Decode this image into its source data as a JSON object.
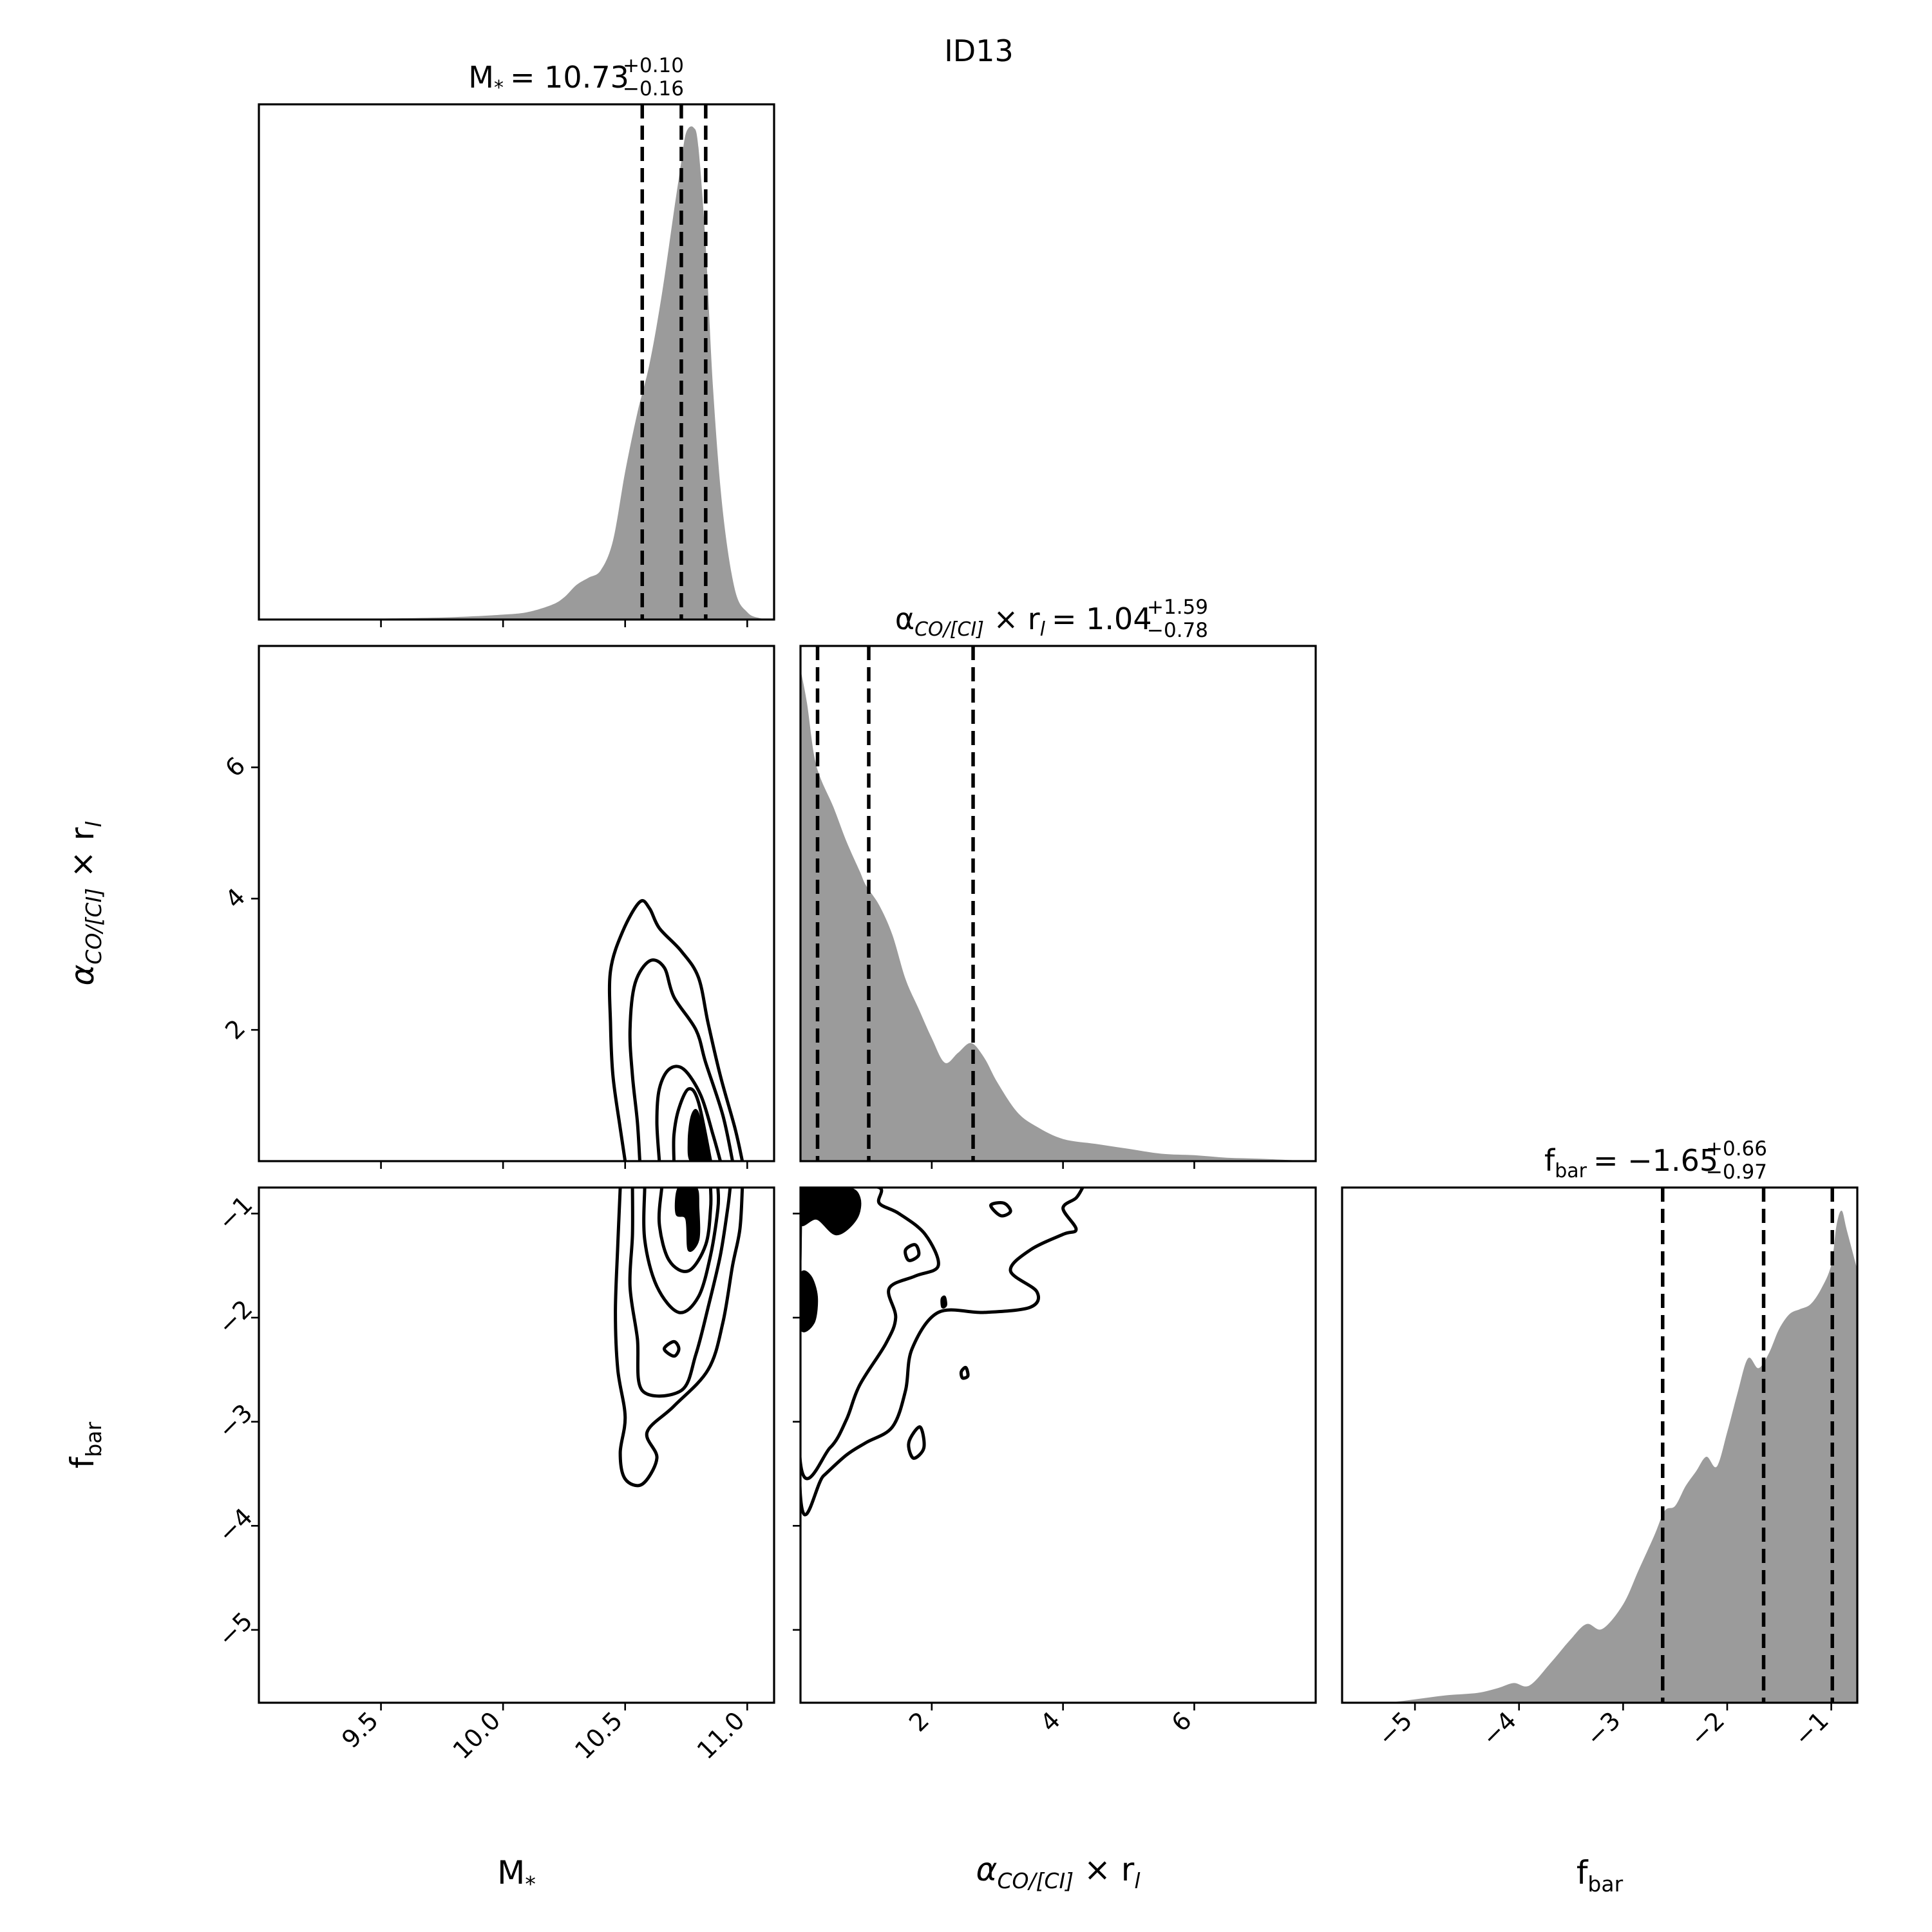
{
  "figure_title": "ID13",
  "chart_data": {
    "type": "corner",
    "parameters": [
      {
        "key": "mstar",
        "label_main": "M",
        "label_sub": "*",
        "range": [
          9.0,
          11.11
        ],
        "ticks": [
          9.5,
          10.0,
          10.5,
          11.0
        ],
        "tick_labels": [
          "9.5",
          "10.0",
          "10.5",
          "11.0"
        ],
        "median": 10.73,
        "plus": "+0.10",
        "minus": "−0.16",
        "median_text": "10.73",
        "quantiles": [
          10.57,
          10.73,
          10.83
        ]
      },
      {
        "key": "alpha",
        "label_main": "α",
        "label_sub": "CO/[CI]",
        "label_tail": " × r",
        "label_tail_sub": "l",
        "range": [
          0.0,
          7.85
        ],
        "ticks": [
          2,
          4,
          6
        ],
        "tick_labels": [
          "2",
          "4",
          "6"
        ],
        "median": 1.04,
        "plus": "+1.59",
        "minus": "−0.78",
        "median_text": "1.04",
        "quantiles": [
          0.26,
          1.04,
          2.63
        ]
      },
      {
        "key": "fbar",
        "label_main": "f",
        "label_sub": "bar",
        "range": [
          -5.7,
          -0.75
        ],
        "ticks": [
          -5,
          -4,
          -3,
          -2,
          -1
        ],
        "tick_labels": [
          "−5",
          "−4",
          "−3",
          "−2",
          "−1"
        ],
        "median": -1.65,
        "plus": "+0.66",
        "minus": "−0.97",
        "median_text": "−1.65",
        "quantiles": [
          -2.62,
          -1.65,
          -0.99
        ]
      }
    ],
    "marginal_mstar": {
      "x": [
        9.0,
        9.5,
        9.8,
        10.0,
        10.1,
        10.2,
        10.25,
        10.3,
        10.35,
        10.4,
        10.45,
        10.5,
        10.55,
        10.6,
        10.65,
        10.7,
        10.73,
        10.75,
        10.78,
        10.8,
        10.83,
        10.86,
        10.9,
        10.95,
        11.0,
        11.05,
        11.11
      ],
      "y": [
        0.0,
        0.002,
        0.005,
        0.01,
        0.015,
        0.03,
        0.045,
        0.07,
        0.085,
        0.1,
        0.16,
        0.3,
        0.42,
        0.52,
        0.66,
        0.83,
        0.93,
        0.99,
        1.0,
        0.96,
        0.76,
        0.47,
        0.22,
        0.06,
        0.015,
        0.003,
        0.0
      ]
    },
    "marginal_alpha": {
      "x": [
        0.0,
        0.1,
        0.2,
        0.3,
        0.5,
        0.7,
        0.9,
        1.0,
        1.2,
        1.4,
        1.6,
        1.8,
        2.0,
        2.2,
        2.4,
        2.6,
        2.8,
        3.0,
        3.3,
        3.6,
        4.0,
        4.5,
        5.0,
        5.5,
        6.0,
        6.5,
        7.0,
        7.5,
        7.85
      ],
      "y": [
        1.0,
        0.93,
        0.83,
        0.78,
        0.72,
        0.65,
        0.59,
        0.56,
        0.52,
        0.46,
        0.37,
        0.31,
        0.25,
        0.2,
        0.22,
        0.24,
        0.21,
        0.16,
        0.1,
        0.07,
        0.045,
        0.035,
        0.025,
        0.015,
        0.012,
        0.007,
        0.005,
        0.002,
        0.0
      ]
    },
    "marginal_fbar": {
      "x": [
        -5.7,
        -5.3,
        -5.0,
        -4.7,
        -4.4,
        -4.2,
        -4.05,
        -3.9,
        -3.7,
        -3.5,
        -3.35,
        -3.2,
        -3.0,
        -2.85,
        -2.7,
        -2.6,
        -2.5,
        -2.4,
        -2.3,
        -2.2,
        -2.1,
        -2.0,
        -1.9,
        -1.8,
        -1.7,
        -1.6,
        -1.5,
        -1.4,
        -1.3,
        -1.2,
        -1.1,
        -1.0,
        -0.95,
        -0.9,
        -0.85,
        -0.75
      ],
      "y": [
        0.0,
        0.0,
        0.007,
        0.015,
        0.02,
        0.03,
        0.04,
        0.035,
        0.08,
        0.13,
        0.16,
        0.15,
        0.2,
        0.27,
        0.34,
        0.39,
        0.4,
        0.44,
        0.47,
        0.5,
        0.48,
        0.55,
        0.63,
        0.7,
        0.68,
        0.71,
        0.76,
        0.79,
        0.8,
        0.81,
        0.84,
        0.89,
        0.97,
        1.0,
        0.96,
        0.88
      ]
    },
    "contours_mstar_alpha": [
      [
        [
          10.5,
          0.0
        ],
        [
          10.48,
          0.5
        ],
        [
          10.45,
          1.3
        ],
        [
          10.44,
          2.1
        ],
        [
          10.44,
          2.9
        ],
        [
          10.49,
          3.5
        ],
        [
          10.56,
          3.95
        ],
        [
          10.6,
          3.85
        ],
        [
          10.64,
          3.55
        ],
        [
          10.73,
          3.2
        ],
        [
          10.8,
          2.8
        ],
        [
          10.84,
          2.1
        ],
        [
          10.89,
          1.3
        ],
        [
          10.95,
          0.5
        ],
        [
          10.98,
          0.0
        ]
      ],
      [
        [
          10.56,
          0.0
        ],
        [
          10.55,
          0.6
        ],
        [
          10.53,
          1.3
        ],
        [
          10.52,
          2.0
        ],
        [
          10.54,
          2.7
        ],
        [
          10.6,
          3.05
        ],
        [
          10.66,
          2.95
        ],
        [
          10.7,
          2.5
        ],
        [
          10.79,
          2.0
        ],
        [
          10.83,
          1.5
        ],
        [
          10.9,
          0.7
        ],
        [
          10.94,
          0.0
        ]
      ],
      [
        [
          10.64,
          0.0
        ],
        [
          10.63,
          0.6
        ],
        [
          10.64,
          1.1
        ],
        [
          10.68,
          1.4
        ],
        [
          10.74,
          1.4
        ],
        [
          10.81,
          1.0
        ],
        [
          10.86,
          0.4
        ],
        [
          10.89,
          0.0
        ]
      ],
      [
        [
          10.7,
          0.0
        ],
        [
          10.7,
          0.4
        ],
        [
          10.72,
          0.8
        ],
        [
          10.76,
          1.1
        ],
        [
          10.8,
          0.9
        ],
        [
          10.85,
          0.0
        ]
      ]
    ],
    "blobs_mstar_alpha": [
      [
        [
          10.77,
          0.0
        ],
        [
          10.76,
          0.3
        ],
        [
          10.77,
          0.65
        ],
        [
          10.79,
          0.78
        ],
        [
          10.81,
          0.6
        ],
        [
          10.83,
          0.25
        ],
        [
          10.84,
          0.0
        ]
      ]
    ],
    "contours_mstar_fbar": [
      [
        [
          10.48,
          -0.75
        ],
        [
          10.47,
          -1.3
        ],
        [
          10.46,
          -1.95
        ],
        [
          10.47,
          -2.5
        ],
        [
          10.5,
          -2.95
        ],
        [
          10.48,
          -3.3
        ],
        [
          10.5,
          -3.55
        ],
        [
          10.57,
          -3.6
        ],
        [
          10.63,
          -3.35
        ],
        [
          10.59,
          -3.1
        ],
        [
          10.7,
          -2.85
        ],
        [
          10.84,
          -2.5
        ],
        [
          10.9,
          -2.05
        ],
        [
          10.94,
          -1.5
        ],
        [
          10.97,
          -1.15
        ],
        [
          10.98,
          -0.75
        ]
      ],
      [
        [
          10.53,
          -0.75
        ],
        [
          10.53,
          -1.2
        ],
        [
          10.52,
          -1.7
        ],
        [
          10.55,
          -2.2
        ],
        [
          10.57,
          -2.7
        ],
        [
          10.73,
          -2.7
        ],
        [
          10.79,
          -2.35
        ],
        [
          10.84,
          -1.9
        ],
        [
          10.89,
          -1.4
        ],
        [
          10.92,
          -0.95
        ],
        [
          10.93,
          -0.75
        ]
      ],
      [
        [
          10.58,
          -0.75
        ],
        [
          10.58,
          -1.25
        ],
        [
          10.63,
          -1.7
        ],
        [
          10.72,
          -1.95
        ],
        [
          10.8,
          -1.8
        ],
        [
          10.85,
          -1.4
        ],
        [
          10.88,
          -0.95
        ],
        [
          10.88,
          -0.75
        ]
      ],
      [
        [
          10.65,
          -0.75
        ],
        [
          10.64,
          -1.1
        ],
        [
          10.68,
          -1.45
        ],
        [
          10.76,
          -1.55
        ],
        [
          10.83,
          -1.3
        ],
        [
          10.85,
          -0.95
        ],
        [
          10.85,
          -0.75
        ]
      ]
    ],
    "smallrings_mstar_fbar": [
      [
        [
          10.66,
          -2.3
        ],
        [
          10.7,
          -2.23
        ],
        [
          10.72,
          -2.3
        ],
        [
          10.7,
          -2.37
        ]
      ]
    ],
    "blobs_mstar_fbar": [
      [
        [
          10.72,
          -0.75
        ],
        [
          10.71,
          -1.0
        ],
        [
          10.75,
          -1.05
        ],
        [
          10.76,
          -1.35
        ],
        [
          10.8,
          -1.25
        ],
        [
          10.8,
          -0.95
        ],
        [
          10.79,
          -0.75
        ]
      ]
    ],
    "contours_alpha_fbar": [
      [
        [
          0.0,
          -0.75
        ],
        [
          0.0,
          -3.72
        ],
        [
          0.35,
          -3.52
        ],
        [
          0.7,
          -3.32
        ],
        [
          1.0,
          -3.2
        ],
        [
          1.4,
          -3.05
        ],
        [
          1.6,
          -2.7
        ],
        [
          1.7,
          -2.3
        ],
        [
          2.1,
          -1.95
        ],
        [
          2.8,
          -1.95
        ],
        [
          3.5,
          -1.9
        ],
        [
          3.6,
          -1.75
        ],
        [
          3.2,
          -1.55
        ],
        [
          3.5,
          -1.35
        ],
        [
          4.0,
          -1.2
        ],
        [
          4.2,
          -1.15
        ],
        [
          4.0,
          -0.95
        ],
        [
          4.2,
          -0.85
        ],
        [
          4.3,
          -0.75
        ]
      ],
      [
        [
          0.0,
          -1.0
        ],
        [
          0.0,
          -3.4
        ],
        [
          0.45,
          -3.25
        ],
        [
          0.7,
          -2.98
        ],
        [
          0.9,
          -2.65
        ],
        [
          1.3,
          -2.25
        ],
        [
          1.45,
          -2.0
        ],
        [
          1.35,
          -1.72
        ],
        [
          1.75,
          -1.6
        ],
        [
          2.1,
          -1.5
        ],
        [
          1.9,
          -1.2
        ],
        [
          1.5,
          -1.0
        ],
        [
          1.2,
          -0.9
        ],
        [
          1.2,
          -0.75
        ],
        [
          0.6,
          -0.75
        ],
        [
          0.4,
          -0.9
        ],
        [
          0.2,
          -0.95
        ]
      ],
      [
        [
          2.9,
          -0.92
        ],
        [
          3.1,
          -0.9
        ],
        [
          3.2,
          -0.98
        ],
        [
          3.05,
          -1.02
        ]
      ],
      [
        [
          1.6,
          -1.35
        ],
        [
          1.75,
          -1.3
        ],
        [
          1.8,
          -1.4
        ],
        [
          1.65,
          -1.45
        ]
      ],
      [
        [
          1.65,
          -3.2
        ],
        [
          1.82,
          -3.05
        ],
        [
          1.88,
          -3.25
        ],
        [
          1.72,
          -3.35
        ]
      ],
      [
        [
          2.45,
          -2.52
        ],
        [
          2.52,
          -2.48
        ],
        [
          2.55,
          -2.56
        ],
        [
          2.47,
          -2.58
        ]
      ]
    ],
    "blobs_alpha_fbar": [
      [
        [
          0.0,
          -0.75
        ],
        [
          0.0,
          -1.1
        ],
        [
          0.25,
          -1.05
        ],
        [
          0.55,
          -1.2
        ],
        [
          0.85,
          -1.05
        ],
        [
          0.9,
          -0.85
        ],
        [
          0.7,
          -0.75
        ]
      ],
      [
        [
          0.0,
          -1.6
        ],
        [
          0.0,
          -2.1
        ],
        [
          0.2,
          -2.05
        ],
        [
          0.25,
          -1.8
        ],
        [
          0.15,
          -1.6
        ]
      ],
      [
        [
          2.15,
          -1.82
        ],
        [
          2.2,
          -1.8
        ],
        [
          2.22,
          -1.88
        ],
        [
          2.16,
          -1.9
        ]
      ]
    ]
  }
}
